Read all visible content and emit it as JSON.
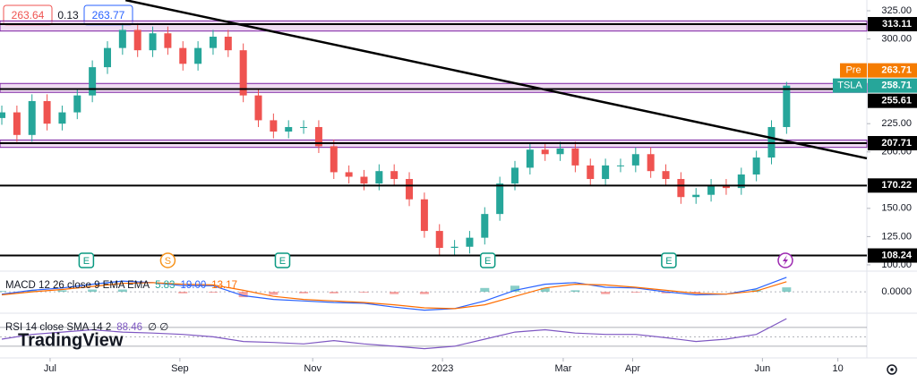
{
  "chart_data": {
    "type": "candlestick",
    "symbol": "TSLA",
    "session_label": "Pre",
    "quote": {
      "bid": 263.64,
      "spread": 0.13,
      "ask": 263.77
    },
    "x": [
      0,
      5,
      10,
      15,
      20,
      25,
      30,
      35,
      40,
      45,
      50,
      55,
      60,
      65,
      70,
      75,
      80,
      85,
      90,
      95,
      100,
      105,
      110,
      115,
      120,
      125,
      130,
      135,
      140,
      145,
      150,
      155,
      160,
      165,
      170,
      175,
      180,
      185,
      190,
      195,
      200,
      205,
      210,
      215,
      220,
      225,
      230,
      235,
      240,
      245,
      250,
      255,
      260
    ],
    "open": [
      230,
      235,
      215,
      245,
      225,
      235,
      250,
      275,
      292,
      308,
      290,
      305,
      292,
      278,
      292,
      302,
      290,
      250,
      228,
      218,
      222,
      222,
      205,
      182,
      178,
      172,
      183,
      176,
      158,
      130,
      115,
      116,
      124,
      145,
      172,
      186,
      202,
      198,
      203,
      188,
      176,
      188,
      188,
      198,
      183,
      176,
      160,
      162,
      170,
      168,
      180,
      195,
      222
    ],
    "high": [
      241,
      241,
      251,
      251,
      241,
      256,
      281,
      298,
      314,
      314,
      311,
      311,
      298,
      298,
      308,
      308,
      296,
      256,
      234,
      228,
      228,
      228,
      211,
      188,
      184,
      189,
      189,
      182,
      164,
      136,
      122,
      130,
      151,
      178,
      192,
      208,
      208,
      209,
      209,
      194,
      194,
      194,
      204,
      204,
      189,
      182,
      168,
      176,
      176,
      186,
      201,
      228,
      262
    ],
    "low": [
      224,
      209,
      209,
      219,
      219,
      229,
      244,
      269,
      286,
      284,
      284,
      286,
      272,
      272,
      286,
      284,
      244,
      222,
      212,
      212,
      216,
      199,
      176,
      172,
      166,
      166,
      170,
      152,
      124,
      109,
      109,
      110,
      118,
      139,
      166,
      180,
      192,
      192,
      182,
      170,
      170,
      182,
      182,
      177,
      170,
      154,
      154,
      156,
      162,
      162,
      174,
      189,
      216
    ],
    "close": [
      235,
      215,
      245,
      225,
      235,
      250,
      275,
      292,
      308,
      290,
      305,
      292,
      278,
      292,
      302,
      290,
      250,
      228,
      218,
      222,
      222,
      205,
      182,
      178,
      172,
      183,
      176,
      158,
      130,
      115,
      116,
      124,
      145,
      172,
      186,
      202,
      198,
      203,
      188,
      176,
      188,
      188,
      198,
      183,
      176,
      160,
      162,
      170,
      168,
      180,
      195,
      222,
      258.71
    ],
    "up_color": "#26a69a",
    "down_color": "#ef5350",
    "xlim": [
      -0.6,
      286.6
    ],
    "ylim": [
      94.4,
      334.5
    ],
    "xticks": [
      {
        "value": 16,
        "label": "Jul"
      },
      {
        "value": 59,
        "label": "Sep"
      },
      {
        "value": 103,
        "label": "Nov"
      },
      {
        "value": 146,
        "label": "2023"
      },
      {
        "value": 186,
        "label": "Mar"
      },
      {
        "value": 209,
        "label": "Apr"
      },
      {
        "value": 252,
        "label": "Jun"
      },
      {
        "value": 277,
        "label": "10"
      }
    ],
    "yticks": [
      {
        "value": 325,
        "label": "325.00"
      },
      {
        "value": 300,
        "label": "300.00"
      },
      {
        "value": 225,
        "label": "225.00"
      },
      {
        "value": 200,
        "label": "200.00"
      },
      {
        "value": 150,
        "label": "150.00"
      },
      {
        "value": 125,
        "label": "125.00"
      },
      {
        "value": 100,
        "label": "100.00"
      }
    ],
    "zones": [
      [
        307,
        316
      ],
      [
        252.7,
        260.6
      ],
      [
        204,
        210.5
      ]
    ],
    "levels": [
      313.11,
      255.61,
      207.71,
      170.22,
      108.24
    ],
    "pre_price": 263.71,
    "trendline": {
      "x": [
        41,
        286.6
      ],
      "y": [
        334.4,
        194.3
      ]
    },
    "events": [
      {
        "x": 28,
        "label": "E"
      },
      {
        "x": 55,
        "label": "S"
      },
      {
        "x": 93,
        "label": "E"
      },
      {
        "x": 161,
        "label": "E"
      },
      {
        "x": 221,
        "label": "E"
      }
    ],
    "macd": {
      "title": "MACD 12 26 close 9 EMA EMA",
      "x": [
        0,
        10,
        20,
        30,
        40,
        50,
        60,
        70,
        80,
        90,
        100,
        110,
        120,
        130,
        140,
        150,
        160,
        170,
        180,
        190,
        200,
        210,
        220,
        230,
        240,
        250,
        260
      ],
      "histogram": [
        1,
        2,
        2,
        3,
        3,
        0,
        -2,
        -1,
        -7,
        -4,
        -2,
        -2,
        -1,
        -3,
        -3,
        0,
        5,
        8,
        5,
        2,
        -3,
        -1,
        -2,
        -2,
        0,
        3,
        5.83
      ],
      "macd": [
        -3,
        2,
        5,
        10,
        14,
        12,
        8,
        8,
        -5,
        -10,
        -12,
        -14,
        -15,
        -20,
        -24,
        -22,
        -12,
        2,
        10,
        12,
        6,
        5,
        0,
        -4,
        -3,
        4,
        19
      ],
      "signal": [
        -4,
        0,
        3,
        7,
        11,
        12,
        10,
        9,
        2,
        -6,
        -10,
        -12,
        -14,
        -17,
        -21,
        -22,
        -17,
        -6,
        5,
        10,
        9,
        6,
        2,
        -2,
        -3,
        1,
        13.17
      ],
      "legend": [
        {
          "value": 5.83,
          "label": "5.83",
          "color": "#26a69a"
        },
        {
          "value": 19,
          "label": "19.00",
          "color": "#2962ff"
        },
        {
          "value": 13.17,
          "label": "13.17",
          "color": "#ff6d00"
        }
      ],
      "macd_color": "#2962ff",
      "signal_color": "#ff6d00",
      "ylim": [
        -28,
        24.7
      ],
      "yticks": [
        {
          "value": 0,
          "label": "0.0000"
        }
      ]
    },
    "rsi": {
      "title": "RSI 14 close SMA 14 2",
      "value": 88.46,
      "na": "∅ ∅",
      "x": [
        0,
        10,
        20,
        30,
        40,
        50,
        60,
        70,
        80,
        90,
        100,
        110,
        120,
        130,
        140,
        150,
        160,
        170,
        180,
        190,
        200,
        210,
        220,
        230,
        240,
        250,
        260
      ],
      "values": [
        45,
        55,
        60,
        65,
        60,
        58,
        55,
        50,
        40,
        38,
        35,
        42,
        35,
        30,
        25,
        30,
        45,
        60,
        65,
        58,
        55,
        55,
        48,
        40,
        45,
        55,
        88.46
      ],
      "color": "#7e57c2",
      "bands": [
        70,
        50,
        30
      ],
      "ylim": [
        9,
        100
      ]
    },
    "watermark": "TradingView"
  }
}
